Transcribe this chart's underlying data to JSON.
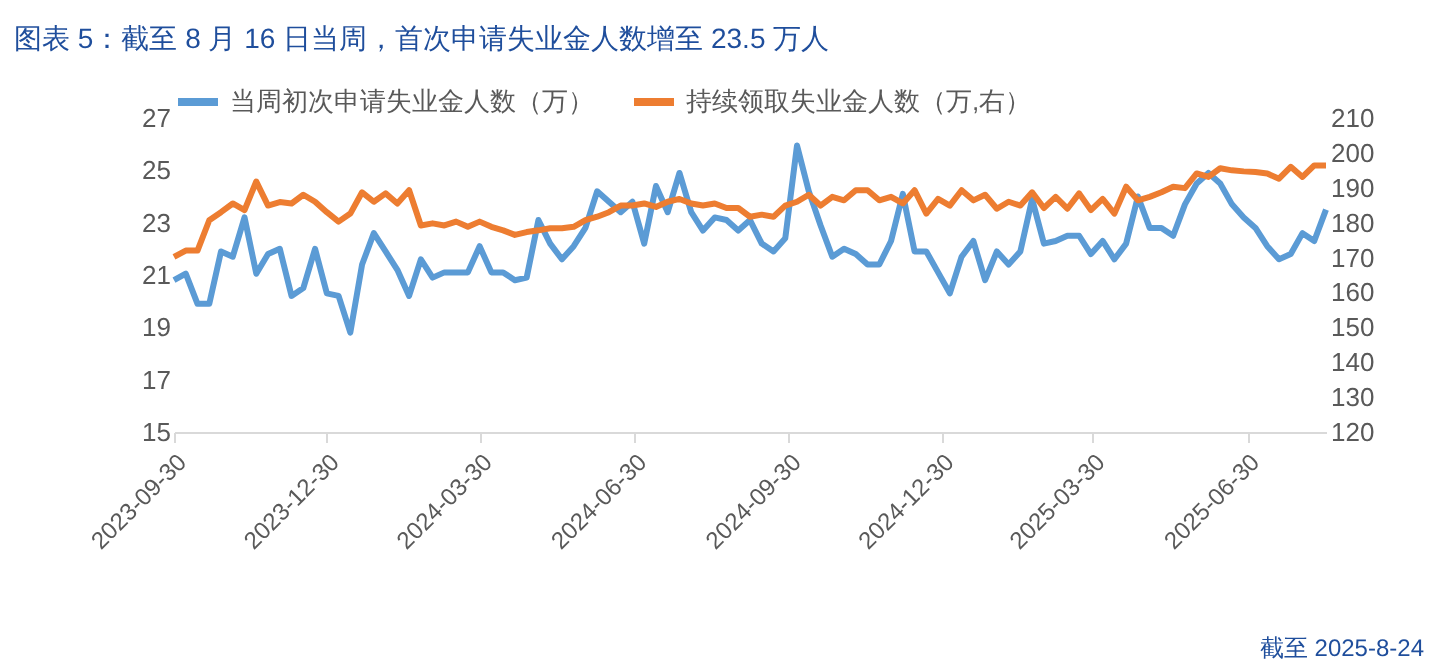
{
  "chart_data": {
    "type": "line",
    "title": "图表 5：截至 8 月 16 日当周，首次申请失业金人数增至 23.5 万人",
    "x": [
      "2023-09-30",
      "2023-10-07",
      "2023-10-14",
      "2023-10-21",
      "2023-10-28",
      "2023-11-04",
      "2023-11-11",
      "2023-11-18",
      "2023-11-25",
      "2023-12-02",
      "2023-12-09",
      "2023-12-16",
      "2023-12-23",
      "2023-12-30",
      "2024-01-06",
      "2024-01-13",
      "2024-01-20",
      "2024-01-27",
      "2024-02-03",
      "2024-02-10",
      "2024-02-17",
      "2024-02-24",
      "2024-03-02",
      "2024-03-09",
      "2024-03-16",
      "2024-03-23",
      "2024-03-30",
      "2024-04-06",
      "2024-04-13",
      "2024-04-20",
      "2024-04-27",
      "2024-05-04",
      "2024-05-11",
      "2024-05-18",
      "2024-05-25",
      "2024-06-01",
      "2024-06-08",
      "2024-06-15",
      "2024-06-22",
      "2024-06-29",
      "2024-07-06",
      "2024-07-13",
      "2024-07-20",
      "2024-07-27",
      "2024-08-03",
      "2024-08-10",
      "2024-08-17",
      "2024-08-24",
      "2024-08-31",
      "2024-09-07",
      "2024-09-14",
      "2024-09-21",
      "2024-09-28",
      "2024-10-05",
      "2024-10-12",
      "2024-10-19",
      "2024-10-26",
      "2024-11-02",
      "2024-11-09",
      "2024-11-16",
      "2024-11-23",
      "2024-11-30",
      "2024-12-07",
      "2024-12-14",
      "2024-12-21",
      "2024-12-28",
      "2025-01-04",
      "2025-01-11",
      "2025-01-18",
      "2025-01-25",
      "2025-02-01",
      "2025-02-08",
      "2025-02-15",
      "2025-02-22",
      "2025-03-01",
      "2025-03-08",
      "2025-03-15",
      "2025-03-22",
      "2025-03-29",
      "2025-04-05",
      "2025-04-12",
      "2025-04-19",
      "2025-04-26",
      "2025-05-03",
      "2025-05-10",
      "2025-05-17",
      "2025-05-24",
      "2025-05-31",
      "2025-06-07",
      "2025-06-14",
      "2025-06-21",
      "2025-06-28",
      "2025-07-05",
      "2025-07-12",
      "2025-07-19",
      "2025-07-26",
      "2025-08-02",
      "2025-08-09",
      "2025-08-16"
    ],
    "series": [
      {
        "name": "当周初次申请失业金人数（万）",
        "color": "#5b9bd5",
        "values": [
          20.8,
          21.05,
          19.9,
          19.9,
          21.9,
          21.7,
          23.2,
          21.05,
          21.8,
          22.0,
          20.2,
          20.5,
          22.0,
          20.3,
          20.2,
          18.8,
          21.4,
          22.6,
          21.9,
          21.2,
          20.2,
          21.6,
          20.9,
          21.1,
          21.1,
          21.1,
          22.1,
          21.1,
          21.1,
          20.8,
          20.9,
          23.1,
          22.2,
          21.6,
          22.1,
          22.8,
          24.2,
          23.8,
          23.4,
          23.8,
          22.2,
          24.4,
          23.4,
          24.9,
          23.4,
          22.7,
          23.2,
          23.1,
          22.7,
          23.1,
          22.2,
          21.9,
          22.4,
          25.95,
          24.2,
          22.9,
          21.7,
          22.0,
          21.8,
          21.4,
          21.4,
          22.3,
          24.1,
          21.9,
          21.9,
          21.1,
          20.3,
          21.7,
          22.3,
          20.8,
          21.9,
          21.4,
          21.9,
          23.9,
          22.2,
          22.3,
          22.5,
          22.5,
          21.8,
          22.3,
          21.6,
          22.2,
          24.0,
          22.8,
          22.8,
          22.5,
          23.7,
          24.5,
          24.9,
          24.5,
          23.7,
          23.2,
          22.8,
          22.1,
          21.6,
          21.8,
          22.6,
          22.3,
          23.5
        ]
      },
      {
        "name": "持续领取失业金人数（万,右）",
        "color": "#ed7d31",
        "axis": "y2",
        "values": [
          170.2,
          172,
          172,
          180.7,
          183,
          185.5,
          183.6,
          191.8,
          184.9,
          185.9,
          185.5,
          188,
          186,
          183,
          180.3,
          182.6,
          188.7,
          186,
          188.4,
          185.5,
          189.3,
          179.2,
          179.8,
          179.2,
          180.3,
          178.8,
          180.3,
          178.8,
          177.8,
          176.5,
          177.3,
          177.8,
          178.4,
          178.4,
          178.8,
          180.7,
          181.7,
          183,
          184.9,
          184.9,
          185.5,
          184.5,
          186,
          186.8,
          185.5,
          184.9,
          185.5,
          184.2,
          184.2,
          181.7,
          182.3,
          181.7,
          184.9,
          186,
          188,
          184.9,
          187.4,
          186.4,
          189.3,
          189.3,
          186.4,
          187.4,
          185.5,
          189.3,
          182.6,
          186.8,
          184.9,
          189.3,
          186.4,
          188,
          184,
          186,
          184.9,
          188.7,
          184.2,
          187.4,
          184,
          188.4,
          183.6,
          186.8,
          182.6,
          190.3,
          186.4,
          187.4,
          188.7,
          190.3,
          189.9,
          194.1,
          193.1,
          195.6,
          195,
          194.7,
          194.5,
          194.1,
          192.6,
          196,
          193.1,
          196.4,
          196.4
        ]
      }
    ],
    "xlim": [
      "2023-09-30",
      "2025-08-16"
    ],
    "xticks": [
      "2023-09-30",
      "2023-12-30",
      "2024-03-30",
      "2024-06-30",
      "2024-09-30",
      "2024-12-30",
      "2025-03-30",
      "2025-06-30"
    ],
    "ylim": [
      15,
      27
    ],
    "yticks": [
      15,
      17,
      19,
      21,
      23,
      25,
      27
    ],
    "y2lim": [
      120,
      210
    ],
    "y2ticks": [
      120,
      130,
      140,
      150,
      160,
      170,
      180,
      190,
      200,
      210
    ],
    "legend": "top",
    "annotations": [
      "截至 2025-8-24"
    ]
  }
}
